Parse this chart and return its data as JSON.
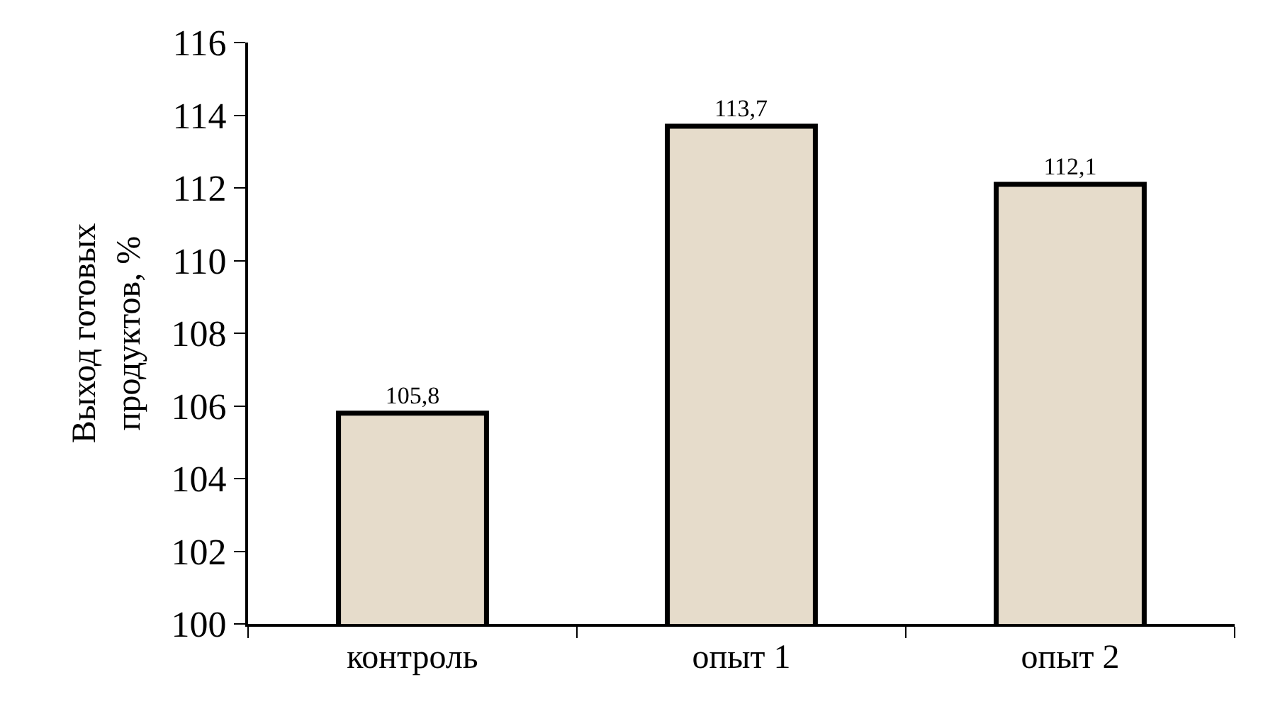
{
  "chart_data": {
    "type": "bar",
    "ylabel": "Выход готовых продуктов, %",
    "categories": [
      "контроль",
      "опыт 1",
      "опыт 2"
    ],
    "values": [
      105.8,
      113.7,
      112.1
    ],
    "value_labels": [
      "105,8",
      "113,7",
      "112,1"
    ],
    "color": "#e6dccb",
    "ylim": [
      100,
      116
    ],
    "yticks": [
      100,
      102,
      104,
      106,
      108,
      110,
      112,
      114,
      116
    ],
    "legend": false
  }
}
